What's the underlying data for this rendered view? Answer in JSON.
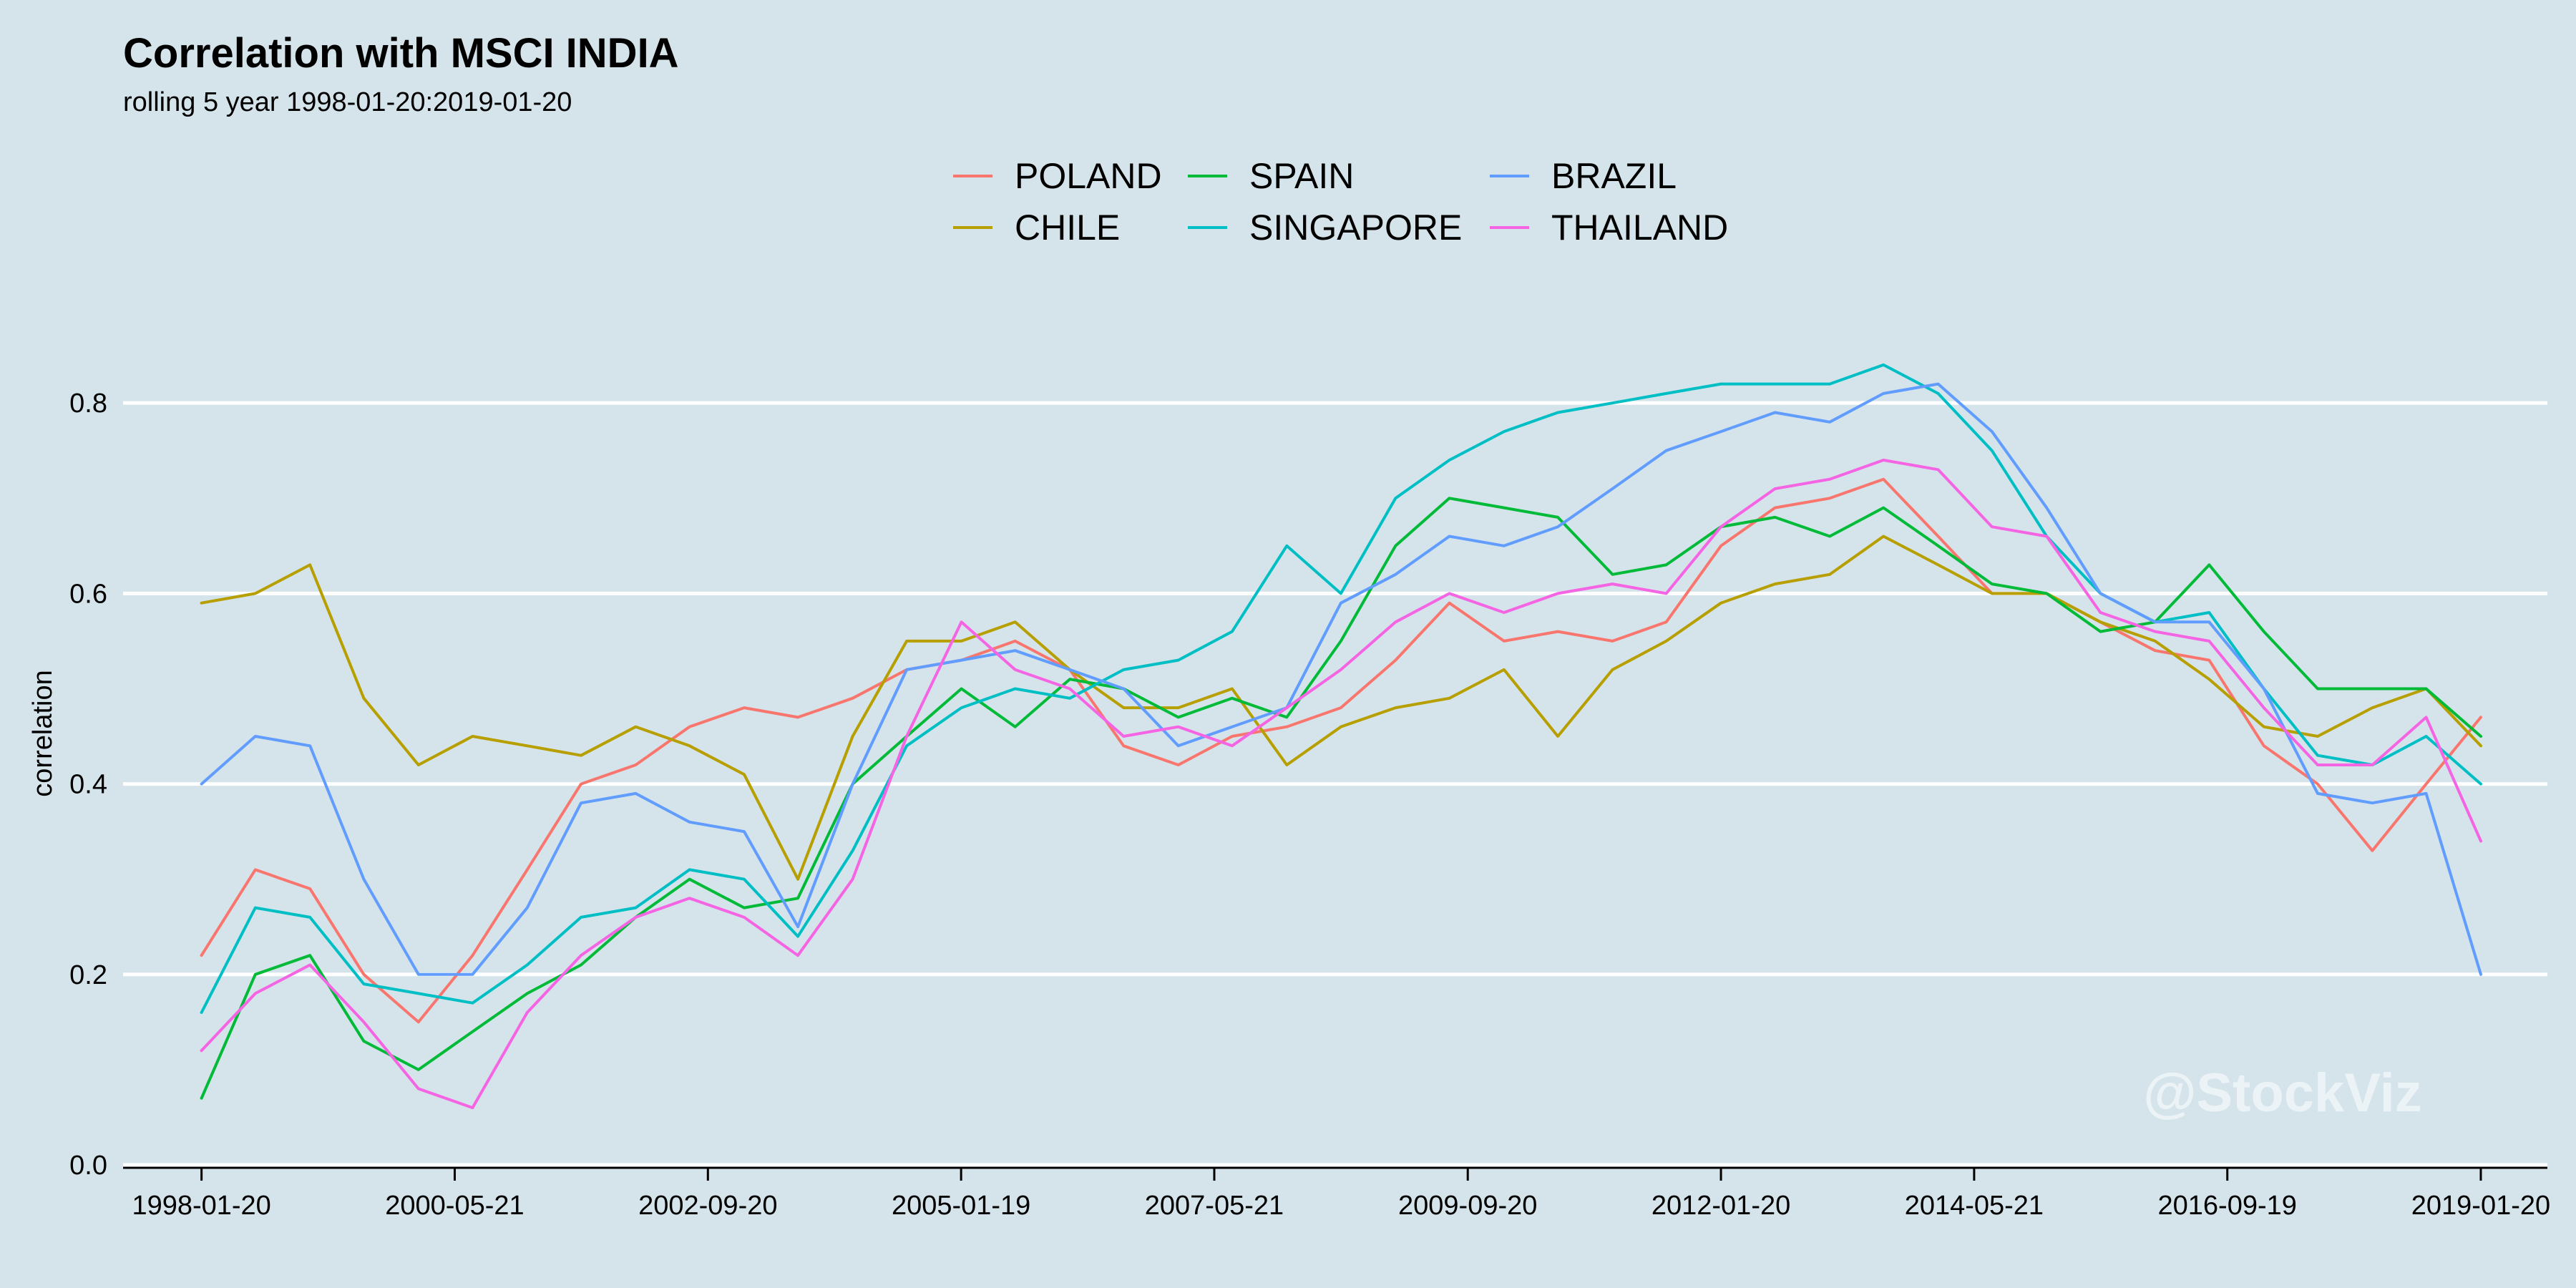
{
  "chart_data": {
    "type": "line",
    "title": "Correlation with MSCI INDIA",
    "subtitle": "rolling 5 year 1998-01-20:2019-01-20",
    "xlabel": "",
    "ylabel": "correlation",
    "ylim": [
      0.0,
      0.87
    ],
    "yticks": [
      0.0,
      0.2,
      0.4,
      0.6,
      0.8
    ],
    "ytick_labels": [
      "0.0",
      "0.2",
      "0.4",
      "0.6",
      "0.8"
    ],
    "xlim": [
      "1997-05-01",
      "2019-09-01"
    ],
    "xticks": [
      "1998-01-20",
      "2000-05-21",
      "2002-09-20",
      "2005-01-19",
      "2007-05-21",
      "2009-09-20",
      "2012-01-20",
      "2014-05-21",
      "2016-09-19",
      "2019-01-20"
    ],
    "grid": "horizontal",
    "legend_position": "top",
    "watermark": "@StockViz",
    "x": [
      "1998-01-20",
      "1998-07-20",
      "1999-01-20",
      "1999-07-20",
      "2000-01-20",
      "2000-07-20",
      "2001-01-20",
      "2001-07-20",
      "2002-01-20",
      "2002-07-20",
      "2003-01-20",
      "2003-07-20",
      "2004-01-20",
      "2004-07-20",
      "2005-01-20",
      "2005-07-20",
      "2006-01-20",
      "2006-07-20",
      "2007-01-20",
      "2007-07-20",
      "2008-01-20",
      "2008-07-20",
      "2009-01-20",
      "2009-07-20",
      "2010-01-20",
      "2010-07-20",
      "2011-01-20",
      "2011-07-20",
      "2012-01-20",
      "2012-07-20",
      "2013-01-20",
      "2013-07-20",
      "2014-01-20",
      "2014-07-20",
      "2015-01-20",
      "2015-07-20",
      "2016-01-20",
      "2016-07-20",
      "2017-01-20",
      "2017-07-20",
      "2018-01-20",
      "2018-07-20",
      "2019-01-20"
    ],
    "series": [
      {
        "name": "POLAND",
        "color": "#f8766d",
        "values": [
          0.22,
          0.31,
          0.29,
          0.2,
          0.15,
          0.22,
          0.31,
          0.4,
          0.42,
          0.46,
          0.48,
          0.47,
          0.49,
          0.52,
          0.53,
          0.55,
          0.52,
          0.44,
          0.42,
          0.45,
          0.46,
          0.48,
          0.53,
          0.59,
          0.55,
          0.56,
          0.55,
          0.57,
          0.65,
          0.69,
          0.7,
          0.72,
          0.66,
          0.6,
          0.6,
          0.57,
          0.54,
          0.53,
          0.44,
          0.4,
          0.33,
          0.4,
          0.47
        ]
      },
      {
        "name": "CHILE",
        "color": "#b79f00",
        "values": [
          0.59,
          0.6,
          0.63,
          0.49,
          0.42,
          0.45,
          0.44,
          0.43,
          0.46,
          0.44,
          0.41,
          0.3,
          0.45,
          0.55,
          0.55,
          0.57,
          0.52,
          0.48,
          0.48,
          0.5,
          0.42,
          0.46,
          0.48,
          0.49,
          0.52,
          0.45,
          0.52,
          0.55,
          0.59,
          0.61,
          0.62,
          0.66,
          0.63,
          0.6,
          0.6,
          0.57,
          0.55,
          0.51,
          0.46,
          0.45,
          0.48,
          0.5,
          0.44
        ]
      },
      {
        "name": "SPAIN",
        "color": "#00ba38",
        "values": [
          0.07,
          0.2,
          0.22,
          0.13,
          0.1,
          0.14,
          0.18,
          0.21,
          0.26,
          0.3,
          0.27,
          0.28,
          0.4,
          0.45,
          0.5,
          0.46,
          0.51,
          0.5,
          0.47,
          0.49,
          0.47,
          0.55,
          0.65,
          0.7,
          0.69,
          0.68,
          0.62,
          0.63,
          0.67,
          0.68,
          0.66,
          0.69,
          0.65,
          0.61,
          0.6,
          0.56,
          0.57,
          0.63,
          0.56,
          0.5,
          0.5,
          0.5,
          0.45
        ]
      },
      {
        "name": "SINGAPORE",
        "color": "#00bfc4",
        "values": [
          0.16,
          0.27,
          0.26,
          0.19,
          0.18,
          0.17,
          0.21,
          0.26,
          0.27,
          0.31,
          0.3,
          0.24,
          0.33,
          0.44,
          0.48,
          0.5,
          0.49,
          0.52,
          0.53,
          0.56,
          0.65,
          0.6,
          0.7,
          0.74,
          0.77,
          0.79,
          0.8,
          0.81,
          0.82,
          0.82,
          0.82,
          0.84,
          0.81,
          0.75,
          0.66,
          0.6,
          0.57,
          0.58,
          0.5,
          0.43,
          0.42,
          0.45,
          0.4
        ]
      },
      {
        "name": "BRAZIL",
        "color": "#619cff",
        "values": [
          0.4,
          0.45,
          0.44,
          0.3,
          0.2,
          0.2,
          0.27,
          0.38,
          0.39,
          0.36,
          0.35,
          0.25,
          0.4,
          0.52,
          0.53,
          0.54,
          0.52,
          0.5,
          0.44,
          0.46,
          0.48,
          0.59,
          0.62,
          0.66,
          0.65,
          0.67,
          0.71,
          0.75,
          0.77,
          0.79,
          0.78,
          0.81,
          0.82,
          0.77,
          0.69,
          0.6,
          0.57,
          0.57,
          0.5,
          0.39,
          0.38,
          0.39,
          0.2
        ]
      },
      {
        "name": "THAILAND",
        "color": "#f564e3",
        "values": [
          0.12,
          0.18,
          0.21,
          0.15,
          0.08,
          0.06,
          0.16,
          0.22,
          0.26,
          0.28,
          0.26,
          0.22,
          0.3,
          0.45,
          0.57,
          0.52,
          0.5,
          0.45,
          0.46,
          0.44,
          0.48,
          0.52,
          0.57,
          0.6,
          0.58,
          0.6,
          0.61,
          0.6,
          0.67,
          0.71,
          0.72,
          0.74,
          0.73,
          0.67,
          0.66,
          0.58,
          0.56,
          0.55,
          0.48,
          0.42,
          0.42,
          0.47,
          0.34
        ]
      }
    ]
  }
}
